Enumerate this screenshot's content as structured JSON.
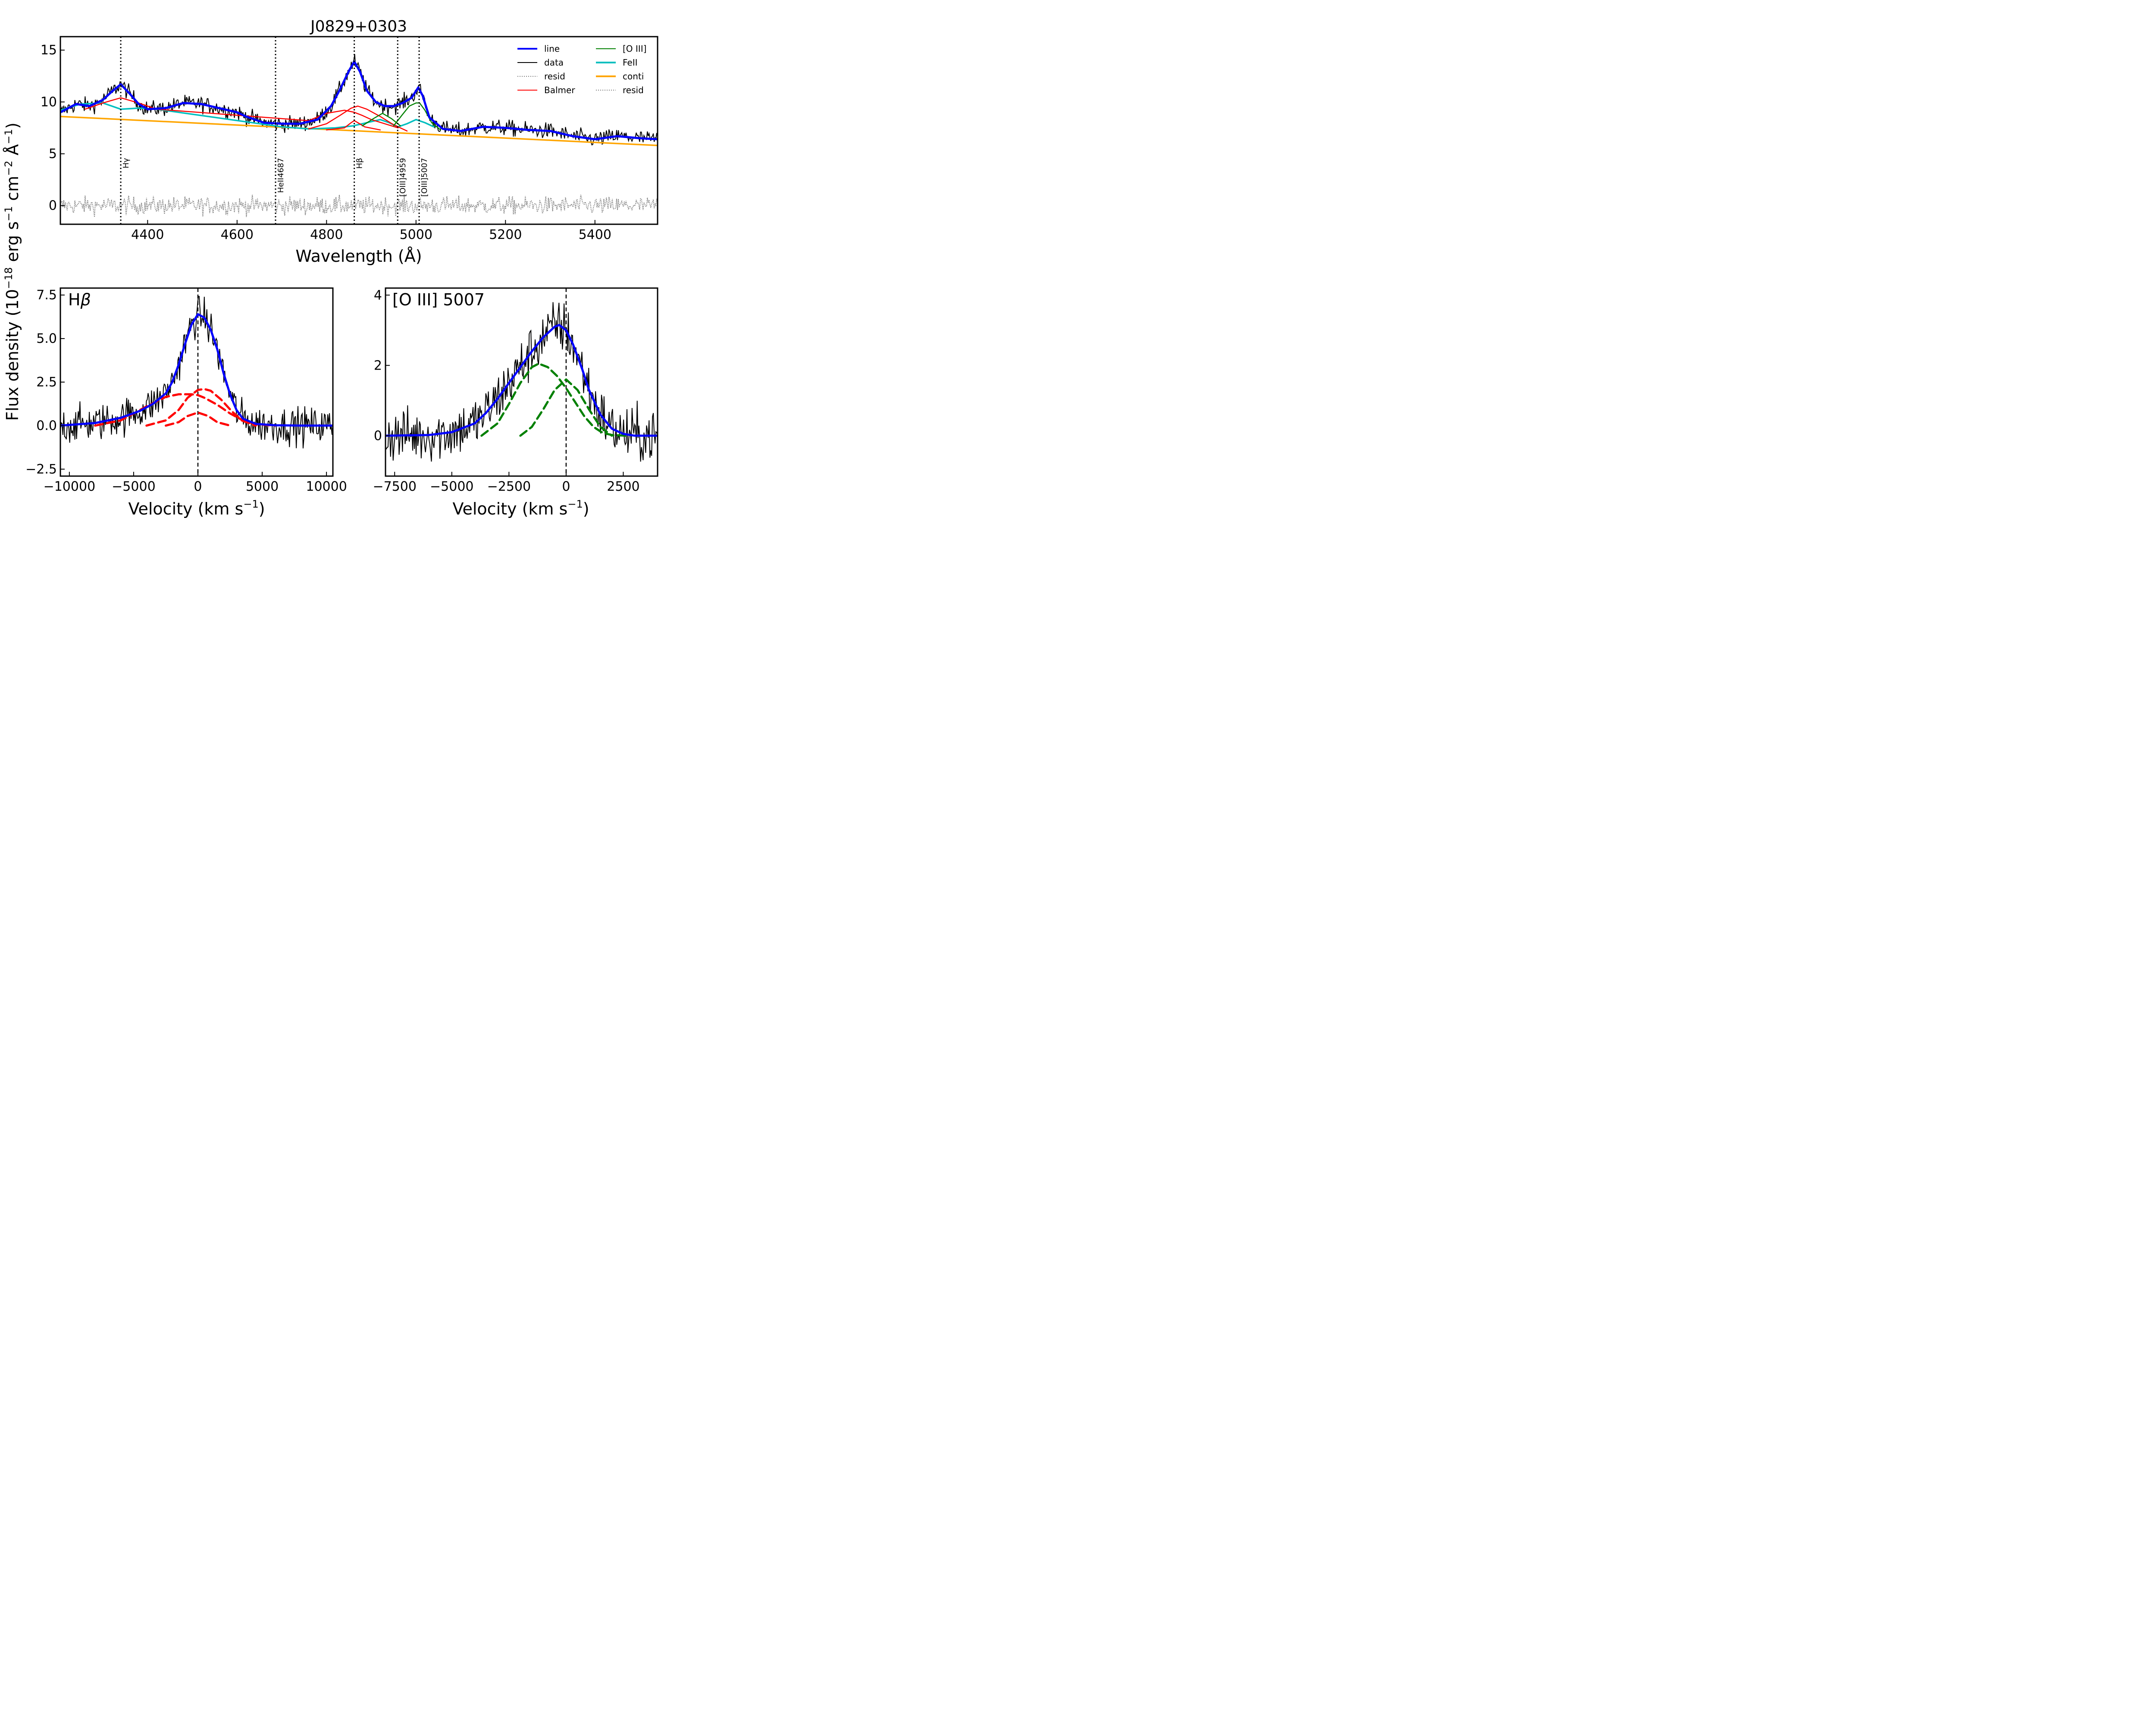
{
  "figure": {
    "ylabel_main": "Flux density (10",
    "ylabel_exp1": "−18",
    "ylabel_mid": " erg s",
    "ylabel_exp2": "−1",
    "ylabel_mid2": " cm",
    "ylabel_exp3": "−2",
    "ylabel_mid3": " Å",
    "ylabel_exp4": "−1",
    "ylabel_end": ")"
  },
  "chart_data": [
    {
      "type": "line",
      "title": "J0829+0303",
      "xlabel": "Wavelength (Å)",
      "xlim": [
        4205,
        5540
      ],
      "ylim": [
        -1.8,
        16.3
      ],
      "xticks": [
        4400,
        4600,
        4800,
        5000,
        5200,
        5400
      ],
      "yticks": [
        0,
        5,
        10,
        15
      ],
      "legend": {
        "placement": "top-right",
        "entries": [
          {
            "label": "line",
            "color": "#0000ff",
            "style": "solid-thick"
          },
          {
            "label": "data",
            "color": "#000000",
            "style": "solid"
          },
          {
            "label": "resid",
            "color": "#808080",
            "style": "dotted"
          },
          {
            "label": "Balmer",
            "color": "#ff0000",
            "style": "solid"
          },
          {
            "label": "[O III]",
            "color": "#008000",
            "style": "solid"
          },
          {
            "label": "FeII",
            "color": "#00bfbf",
            "style": "solid-thick"
          },
          {
            "label": "conti",
            "color": "#ffa500",
            "style": "solid-thick"
          },
          {
            "label": "resid",
            "color": "#808080",
            "style": "dotted"
          }
        ]
      },
      "line_markers": [
        {
          "label": "Hγ",
          "x": 4340
        },
        {
          "label": "HeII4687",
          "x": 4686
        },
        {
          "label": "Hβ",
          "x": 4862
        },
        {
          "label": "[OIII]4959",
          "x": 4959
        },
        {
          "label": "[OIII]5007",
          "x": 5007
        }
      ],
      "series": [
        {
          "key": "conti",
          "color": "#ffa500",
          "x": [
            4205,
            5540
          ],
          "y": [
            8.6,
            5.8
          ]
        },
        {
          "key": "line",
          "color": "#0000ff",
          "x": [
            4205,
            4240,
            4270,
            4300,
            4320,
            4340,
            4360,
            4380,
            4400,
            4440,
            4480,
            4520,
            4560,
            4600,
            4620,
            4660,
            4700,
            4740,
            4780,
            4810,
            4830,
            4850,
            4862,
            4875,
            4890,
            4910,
            4930,
            4950,
            4970,
            4990,
            5005,
            5015,
            5030,
            5060,
            5100,
            5150,
            5200,
            5250,
            5300,
            5350,
            5400,
            5450,
            5500,
            5540
          ],
          "y": [
            9.0,
            9.8,
            9.6,
            10.2,
            11.0,
            11.7,
            10.8,
            9.8,
            9.3,
            9.4,
            9.9,
            9.8,
            9.4,
            9.0,
            8.6,
            8.0,
            7.9,
            7.9,
            8.3,
            9.6,
            11.2,
            13.0,
            13.9,
            12.9,
            11.1,
            10.0,
            9.6,
            9.6,
            9.9,
            10.4,
            11.4,
            10.6,
            8.5,
            7.4,
            7.2,
            7.6,
            7.5,
            7.3,
            7.2,
            6.7,
            6.4,
            6.7,
            6.5,
            6.4
          ]
        },
        {
          "key": "feii",
          "color": "#00bfbf",
          "x": [
            4205,
            4250,
            4300,
            4340,
            4380,
            4420,
            4700,
            4760,
            4820,
            4860,
            4880,
            4900,
            4920,
            4940,
            4960,
            4980,
            5000,
            5020,
            5040
          ],
          "y": [
            9.2,
            9.8,
            9.9,
            9.3,
            9.4,
            9.3,
            7.6,
            7.4,
            7.5,
            7.7,
            7.9,
            8.1,
            8.3,
            8.0,
            7.6,
            7.9,
            8.3,
            8.0,
            7.6
          ]
        },
        {
          "key": "balmer_broad",
          "color": "#ff0000",
          "x": [
            4260,
            4300,
            4340,
            4380,
            4420,
            4760,
            4800,
            4840,
            4862,
            4880,
            4900,
            4930,
            4960
          ],
          "y": [
            9.3,
            9.9,
            10.4,
            9.9,
            9.3,
            8.2,
            8.9,
            9.2,
            9.0,
            8.7,
            8.3,
            7.9,
            7.5
          ]
        },
        {
          "key": "balmer_mid",
          "color": "#ff0000",
          "x": [
            4760,
            4800,
            4830,
            4855,
            4870,
            4890,
            4920,
            4950,
            4980
          ],
          "y": [
            7.4,
            7.9,
            8.7,
            9.4,
            9.6,
            9.3,
            8.6,
            7.8,
            7.2
          ]
        },
        {
          "key": "balmer_narrow",
          "color": "#ff0000",
          "x": [
            4800,
            4840,
            4855,
            4862,
            4870,
            4885,
            4920
          ],
          "y": [
            7.3,
            7.5,
            8.0,
            8.2,
            8.0,
            7.6,
            7.3
          ]
        },
        {
          "key": "oiii_4959",
          "color": "#008000",
          "x": [
            4880,
            4905,
            4925,
            4945,
            4965
          ],
          "y": [
            7.7,
            8.4,
            8.9,
            8.4,
            7.7
          ]
        },
        {
          "key": "oiii_5007",
          "color": "#008000",
          "x": [
            4950,
            4970,
            4985,
            5000,
            5008,
            5020,
            5035,
            5055
          ],
          "y": [
            7.7,
            8.8,
            9.6,
            9.9,
            9.9,
            9.2,
            8.0,
            7.3
          ]
        }
      ]
    },
    {
      "type": "line",
      "panel_label": "H",
      "panel_label_greek": "β",
      "xlabel": "Velocity (km s",
      "xlabel_exp": "−1",
      "xlabel_end": ")",
      "xlim": [
        -10700,
        10500
      ],
      "ylim": [
        -2.9,
        7.9
      ],
      "xticks": [
        -10000,
        -5000,
        0,
        5000,
        10000
      ],
      "xtick_labels": [
        "−10000",
        "−5000",
        "0",
        "5000",
        "10000"
      ],
      "yticks": [
        -2.5,
        0.0,
        2.5,
        5.0,
        7.5
      ],
      "ytick_labels": [
        "−2.5",
        "0.0",
        "2.5",
        "5.0",
        "7.5"
      ],
      "series": [
        {
          "key": "model",
          "color": "#0000ff",
          "x": [
            -10700,
            -8000,
            -6000,
            -4500,
            -3500,
            -2500,
            -2000,
            -1500,
            -1000,
            -500,
            0,
            500,
            1000,
            1500,
            2000,
            2500,
            3000,
            3500,
            4500,
            6000,
            8000,
            10500
          ],
          "y": [
            0.0,
            0.15,
            0.45,
            0.85,
            1.25,
            1.85,
            2.5,
            3.5,
            4.7,
            5.8,
            6.4,
            6.2,
            5.5,
            4.4,
            3.0,
            1.8,
            0.9,
            0.4,
            0.1,
            0.02,
            0.0,
            0.0
          ]
        },
        {
          "key": "balmer_broad",
          "color": "#ff0000",
          "dashed": true,
          "x": [
            -8000,
            -6000,
            -4000,
            -2500,
            -1500,
            -500,
            0,
            500,
            1500,
            2500,
            3500,
            4500,
            6000
          ],
          "y": [
            0.0,
            0.3,
            1.1,
            1.65,
            1.8,
            1.8,
            1.75,
            1.6,
            1.2,
            0.7,
            0.3,
            0.08,
            0.0
          ]
        },
        {
          "key": "balmer_mid",
          "color": "#ff0000",
          "dashed": true,
          "x": [
            -4000,
            -2500,
            -1500,
            -800,
            0,
            500,
            1000,
            1800,
            2600,
            3400,
            4500
          ],
          "y": [
            0.0,
            0.3,
            0.9,
            1.6,
            2.05,
            2.1,
            2.0,
            1.5,
            0.85,
            0.3,
            0.0
          ]
        },
        {
          "key": "balmer_narrow",
          "color": "#ff0000",
          "dashed": true,
          "x": [
            -2500,
            -1500,
            -800,
            0,
            800,
            1500,
            2500
          ],
          "y": [
            0.0,
            0.2,
            0.55,
            0.75,
            0.55,
            0.2,
            0.0
          ]
        }
      ]
    },
    {
      "type": "line",
      "panel_label": "[O III] 5007",
      "xlabel": "Velocity (km s",
      "xlabel_exp": "−1",
      "xlabel_end": ")",
      "xlim": [
        -7900,
        4000
      ],
      "ylim": [
        -1.15,
        4.2
      ],
      "xticks": [
        -7500,
        -5000,
        -2500,
        0,
        2500
      ],
      "xtick_labels": [
        "−7500",
        "−5000",
        "−2500",
        "0",
        "2500"
      ],
      "yticks": [
        0,
        2,
        4
      ],
      "ytick_labels": [
        "0",
        "2",
        "4"
      ],
      "series": [
        {
          "key": "model",
          "color": "#0000ff",
          "x": [
            -7900,
            -6000,
            -5000,
            -4000,
            -3500,
            -3000,
            -2500,
            -2000,
            -1500,
            -1000,
            -500,
            -300,
            0,
            300,
            700,
            1000,
            1500,
            2000,
            2500,
            3000,
            4000
          ],
          "y": [
            0.0,
            0.02,
            0.1,
            0.35,
            0.65,
            1.05,
            1.5,
            1.95,
            2.4,
            2.8,
            3.1,
            3.15,
            3.0,
            2.6,
            1.9,
            1.3,
            0.6,
            0.2,
            0.05,
            0.0,
            0.0
          ]
        },
        {
          "key": "oiii_core",
          "color": "#008000",
          "dashed": true,
          "x": [
            -3700,
            -3000,
            -2500,
            -2000,
            -1500,
            -1200,
            -800,
            -400,
            0,
            400,
            800,
            1200,
            1600,
            2000,
            2600
          ],
          "y": [
            0.0,
            0.35,
            0.9,
            1.5,
            1.95,
            2.05,
            1.95,
            1.7,
            1.35,
            0.95,
            0.55,
            0.25,
            0.08,
            0.02,
            0.0
          ]
        },
        {
          "key": "oiii_wing",
          "color": "#008000",
          "dashed": true,
          "x": [
            -2000,
            -1500,
            -1000,
            -500,
            0,
            500,
            1000,
            1500,
            2000
          ],
          "y": [
            0.0,
            0.25,
            0.75,
            1.3,
            1.6,
            1.3,
            0.75,
            0.25,
            0.0
          ]
        }
      ]
    }
  ]
}
